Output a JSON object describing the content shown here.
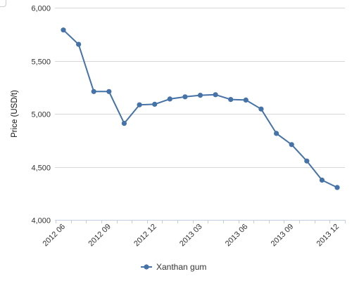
{
  "chart_data": {
    "type": "line",
    "title": "",
    "xlabel": "",
    "ylabel": "Price (USD/t)",
    "ylim": [
      4000,
      6000
    ],
    "y_ticks": [
      4000,
      4500,
      5000,
      5500,
      6000
    ],
    "y_tick_labels": [
      "4,000",
      "4,500",
      "5,000",
      "5,500",
      "6,000"
    ],
    "x_tick_labels": [
      "2012 06",
      "2012 09",
      "2012 12",
      "2013 03",
      "2013 06",
      "2013 09",
      "2013 12"
    ],
    "x": [
      "2012 06",
      "2012 07",
      "2012 08",
      "2012 09",
      "2012 10",
      "2012 11",
      "2012 12",
      "2013 01",
      "2013 02",
      "2013 03",
      "2013 04",
      "2013 05",
      "2013 06",
      "2013 07",
      "2013 08",
      "2013 09",
      "2013 10",
      "2013 11",
      "2013 12"
    ],
    "series": [
      {
        "name": "Xanthan gum",
        "color": "#4572a7",
        "values": [
          5790,
          5655,
          5210,
          5210,
          4910,
          5085,
          5090,
          5140,
          5160,
          5175,
          5180,
          5135,
          5130,
          5045,
          4815,
          4710,
          4555,
          4375,
          4305
        ]
      }
    ],
    "grid": "horizontal",
    "legend_position": "bottom-center"
  }
}
